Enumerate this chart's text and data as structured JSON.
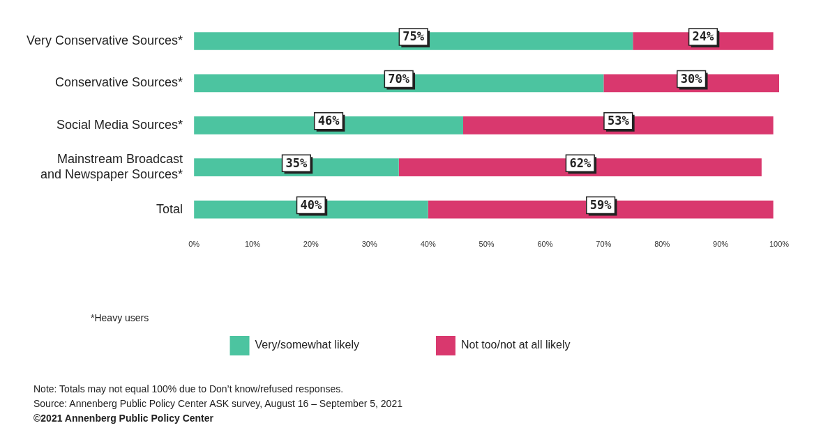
{
  "chart_data": {
    "type": "bar",
    "orientation": "horizontal",
    "stacked": true,
    "categories": [
      "Very Conservative Sources*",
      "Conservative Sources*",
      "Social Media Sources*",
      "Mainstream Broadcast\nand Newspaper Sources*",
      "Total"
    ],
    "series": [
      {
        "name": "Very/somewhat likely",
        "color": "#4cc4a0",
        "values": [
          75,
          70,
          46,
          35,
          40
        ]
      },
      {
        "name": "Not too/not at all likely",
        "color": "#d9386e",
        "values": [
          24,
          30,
          53,
          62,
          59
        ]
      }
    ],
    "xlim": [
      0,
      100
    ],
    "xticks": [
      {
        "value": 0,
        "label": "0%"
      },
      {
        "value": 10,
        "label": "10%"
      },
      {
        "value": 20,
        "label": "20%"
      },
      {
        "value": 30,
        "label": "30%"
      },
      {
        "value": 40,
        "label": "40%"
      },
      {
        "value": 50,
        "label": "50%"
      },
      {
        "value": 60,
        "label": "60%"
      },
      {
        "value": 70,
        "label": "70%"
      },
      {
        "value": 80,
        "label": "80%"
      },
      {
        "value": 90,
        "label": "90%"
      },
      {
        "value": 100,
        "label": "100%"
      }
    ],
    "value_labels": [
      [
        "75%",
        "70%",
        "46%",
        "35%",
        "40%"
      ],
      [
        "24%",
        "30%",
        "53%",
        "62%",
        "59%"
      ]
    ],
    "grid": false,
    "legend": "bottom",
    "annotations": [
      "*Heavy users",
      "Note: Totals may not equal 100% due to Don’t know/refused responses.",
      "Source: Annenberg Public Policy Center ASK survey, August 16 – September 5, 2021",
      "©2021 Annenberg Public Policy Center"
    ]
  }
}
